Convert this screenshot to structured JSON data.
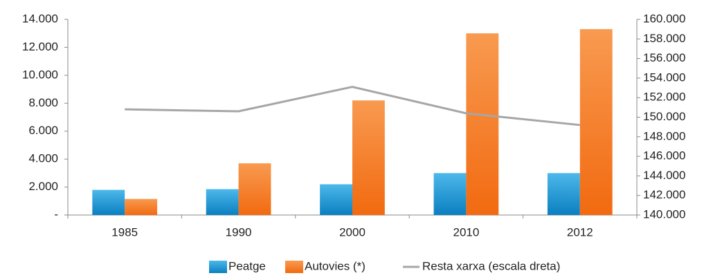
{
  "chart_data": {
    "type": "bar",
    "categories": [
      "1985",
      "1990",
      "2000",
      "2010",
      "2012"
    ],
    "series": [
      {
        "name": "Peatge",
        "color": "#1a9ad6",
        "values": [
          1800,
          1850,
          2200,
          3000,
          3000
        ]
      },
      {
        "name": "Autovies (*)",
        "color": "#f47920",
        "values": [
          1150,
          3700,
          8200,
          13000,
          13300
        ]
      },
      {
        "name": "Resta xarxa (escala dreta)",
        "color": "#a6a6a6",
        "axis": "y2",
        "type": "line",
        "values": [
          150800,
          150600,
          153100,
          150400,
          149200
        ]
      }
    ],
    "ylim": [
      0,
      14000
    ],
    "yticks": [
      {
        "value": 0,
        "label": "-"
      },
      {
        "value": 2000,
        "label": "2.000"
      },
      {
        "value": 4000,
        "label": "4.000"
      },
      {
        "value": 6000,
        "label": "6.000"
      },
      {
        "value": 8000,
        "label": "8.000"
      },
      {
        "value": 10000,
        "label": "10.000"
      },
      {
        "value": 12000,
        "label": "12.000"
      },
      {
        "value": 14000,
        "label": "14.000"
      }
    ],
    "y2lim": [
      140000,
      160000
    ],
    "y2ticks": [
      {
        "value": 140000,
        "label": "140.000"
      },
      {
        "value": 142000,
        "label": "142.000"
      },
      {
        "value": 144000,
        "label": "144.000"
      },
      {
        "value": 146000,
        "label": "146.000"
      },
      {
        "value": 148000,
        "label": "148.000"
      },
      {
        "value": 150000,
        "label": "150.000"
      },
      {
        "value": 152000,
        "label": "152.000"
      },
      {
        "value": 154000,
        "label": "154.000"
      },
      {
        "value": 156000,
        "label": "156.000"
      },
      {
        "value": 158000,
        "label": "158.000"
      },
      {
        "value": 160000,
        "label": "160.000"
      }
    ],
    "grid": false,
    "legend": "bottom"
  }
}
